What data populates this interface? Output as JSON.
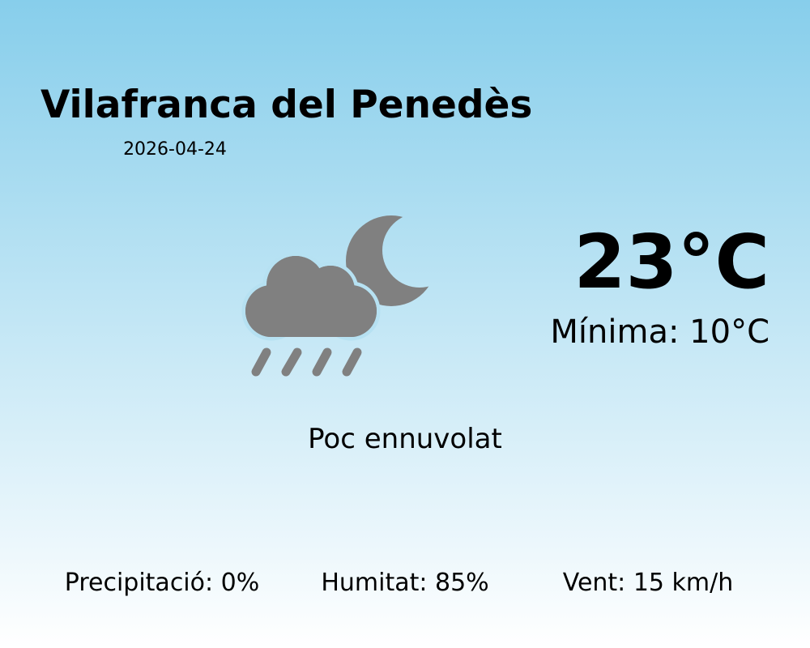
{
  "location": "Vilafranca del Penedès",
  "date": "2026-04-24",
  "temperature": "23°C",
  "minimum": "Mínima: 10°C",
  "condition": "Poc ennuvolat",
  "icon": "cloud-moon-rain-icon",
  "icon_color": "#808080",
  "stats": {
    "precipitation": "Precipitació: 0%",
    "humidity": "Humitat: 85%",
    "wind": "Vent: 15 km/h"
  }
}
